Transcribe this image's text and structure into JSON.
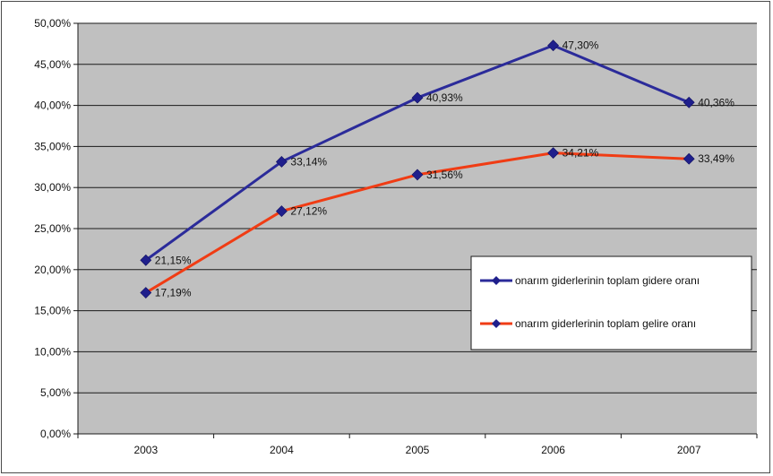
{
  "chart_data": {
    "type": "line",
    "categories": [
      "2003",
      "2004",
      "2005",
      "2006",
      "2007"
    ],
    "y_ticks": [
      "0,00%",
      "5,00%",
      "10,00%",
      "15,00%",
      "20,00%",
      "25,00%",
      "30,00%",
      "35,00%",
      "40,00%",
      "45,00%",
      "50,00%"
    ],
    "ylim": [
      0,
      50
    ],
    "grid": true,
    "legend_position": "right-middle",
    "plot_background": "#c0c0c0",
    "series": [
      {
        "name": "onarım giderlerinin toplam gidere oranı",
        "color": "#2b2b9a",
        "marker_color": "#1f1f8c",
        "values": [
          21.15,
          33.14,
          40.93,
          47.3,
          40.36
        ],
        "labels": [
          "21,15%",
          "33,14%",
          "40,93%",
          "47,30%",
          "40,36%"
        ]
      },
      {
        "name": "onarım giderlerinin toplam gelire oranı",
        "color": "#f03c14",
        "marker_color": "#1f1f8c",
        "values": [
          17.19,
          27.12,
          31.56,
          34.21,
          33.49
        ],
        "labels": [
          "17,19%",
          "27,12%",
          "31,56%",
          "34,21%",
          "33,49%"
        ]
      }
    ]
  }
}
